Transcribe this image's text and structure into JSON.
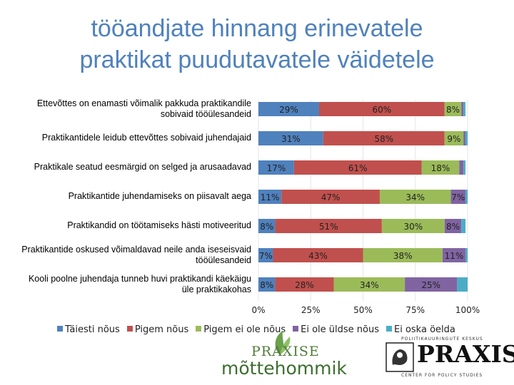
{
  "title": {
    "line1": "tööandjate hinnang erinevatele",
    "line2": "praktikat puudutavatele väidetele"
  },
  "chart_data": {
    "type": "bar",
    "orientation": "horizontal",
    "stacked": "percent",
    "categories": [
      "Ettevõttes on enamasti võimalik pakkuda praktikandile sobivaid tööülesandeid",
      "Praktikantidele leidub ettevõttes sobivaid juhendajaid",
      "Praktikale seatud eesmärgid on selged ja arusaadavad",
      "Praktikantide juhendamiseks on piisavalt aega",
      "Praktikandid on töötamiseks hästi motiveeritud",
      "Praktikantide oskused võimaldavad neile anda iseseisvaid tööülesandeid",
      "Kooli poolne juhendaja tunneb huvi praktikandi käekäigu üle praktikakohas"
    ],
    "series": [
      {
        "name": "Täiesti nõus",
        "color": "#4f81bd",
        "values": [
          29,
          31,
          17,
          11,
          8,
          7,
          8
        ],
        "labels": [
          "29%",
          "31%",
          "17%",
          "11%",
          "8%",
          "7%",
          "8%"
        ]
      },
      {
        "name": "Pigem nõus",
        "color": "#c0504d",
        "values": [
          60,
          58,
          61,
          47,
          51,
          43,
          28
        ],
        "labels": [
          "60%",
          "58%",
          "61%",
          "47%",
          "51%",
          "43%",
          "28%"
        ]
      },
      {
        "name": "Pigem ei ole nõus",
        "color": "#9bbb59",
        "values": [
          8,
          9,
          18,
          34,
          30,
          38,
          34
        ],
        "labels": [
          "8%",
          "9%",
          "18%",
          "34%",
          "30%",
          "38%",
          "34%"
        ]
      },
      {
        "name": "Ei ole üldse nõus",
        "color": "#8064a2",
        "values": [
          1,
          1,
          2,
          7,
          8,
          11,
          25
        ],
        "labels": [
          "",
          "",
          "",
          "7%",
          "8%",
          "11%",
          "25%"
        ]
      },
      {
        "name": "Ei oska öelda",
        "color": "#4bacc6",
        "values": [
          1,
          1,
          1,
          1,
          2,
          1,
          5
        ],
        "labels": [
          "",
          "",
          "",
          "",
          "",
          "",
          ""
        ]
      }
    ],
    "xticks": [
      "0%",
      "25%",
      "50%",
      "75%",
      "100%"
    ],
    "xlim": [
      0,
      100
    ],
    "legend": "bottom",
    "grid": false
  },
  "logos": {
    "praxise_line1": "PRAXISE",
    "praxise_line2": "mõttehommik",
    "praxis_word": "PRAXIS",
    "praxis_tag_top": "POLIITIKAUURINGUTE KESKUS",
    "praxis_tag_bottom": "CENTER FOR POLICY STUDIES"
  }
}
